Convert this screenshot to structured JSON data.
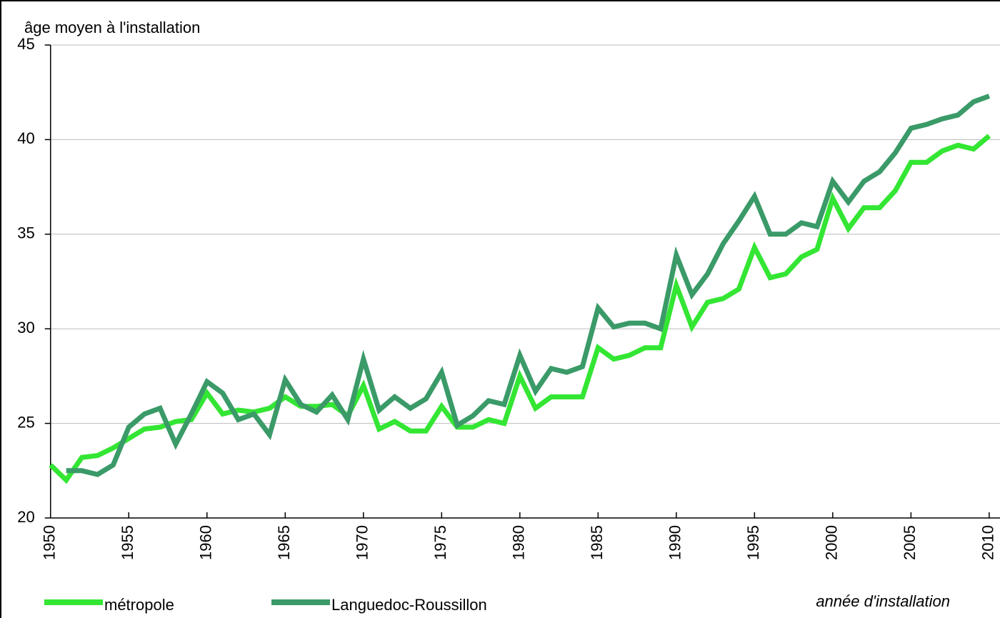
{
  "chart_data": {
    "type": "line",
    "y_label": "âge moyen à l'installation",
    "x_label": "année d'installation",
    "x": [
      1950,
      1951,
      1952,
      1953,
      1954,
      1955,
      1956,
      1957,
      1958,
      1959,
      1960,
      1961,
      1962,
      1963,
      1964,
      1965,
      1966,
      1967,
      1968,
      1969,
      1970,
      1971,
      1972,
      1973,
      1974,
      1975,
      1976,
      1977,
      1978,
      1979,
      1980,
      1981,
      1982,
      1983,
      1984,
      1985,
      1986,
      1987,
      1988,
      1989,
      1990,
      1991,
      1992,
      1993,
      1994,
      1995,
      1996,
      1997,
      1998,
      1999,
      2000,
      2001,
      2002,
      2003,
      2004,
      2005,
      2006,
      2007,
      2008,
      2009,
      2010
    ],
    "series": [
      {
        "name": "métropole",
        "color": "#33e633",
        "values": [
          22.8,
          22.0,
          23.2,
          23.3,
          23.7,
          24.2,
          24.7,
          24.8,
          25.1,
          25.2,
          26.6,
          25.5,
          25.7,
          25.6,
          25.8,
          26.4,
          25.9,
          25.9,
          26.0,
          25.4,
          27.0,
          24.7,
          25.1,
          24.6,
          24.6,
          25.9,
          24.8,
          24.8,
          25.2,
          25.0,
          27.5,
          25.8,
          26.4,
          26.4,
          26.4,
          29.0,
          28.4,
          28.6,
          29.0,
          29.0,
          32.3,
          30.1,
          31.4,
          31.6,
          32.1,
          34.3,
          32.7,
          32.9,
          33.8,
          34.2,
          36.9,
          35.3,
          36.4,
          36.4,
          37.3,
          38.8,
          38.8,
          39.4,
          39.7,
          39.5,
          40.2
        ]
      },
      {
        "name": "Languedoc-Roussillon",
        "color": "#3a9a68",
        "values": [
          null,
          22.5,
          22.5,
          22.3,
          22.8,
          24.8,
          25.5,
          25.8,
          23.9,
          25.5,
          27.2,
          26.6,
          25.2,
          25.5,
          24.4,
          27.3,
          26.0,
          25.6,
          26.5,
          25.2,
          28.4,
          25.7,
          26.4,
          25.8,
          26.3,
          27.7,
          24.9,
          25.4,
          26.2,
          26.0,
          28.6,
          26.7,
          27.9,
          27.7,
          28.0,
          31.1,
          30.1,
          30.3,
          30.3,
          30.0,
          33.9,
          31.8,
          32.9,
          34.5,
          35.7,
          37.0,
          35.0,
          35.0,
          35.6,
          35.4,
          37.8,
          36.7,
          37.8,
          38.3,
          39.3,
          40.6,
          40.8,
          41.1,
          41.3,
          42.0,
          42.3
        ]
      }
    ],
    "xlim": [
      1949.6,
      2010.6
    ],
    "xticks": [
      1950,
      1955,
      1960,
      1965,
      1970,
      1975,
      1980,
      1985,
      1990,
      1995,
      2000,
      2005,
      2010
    ],
    "ylim": [
      20,
      45
    ],
    "yticks": [
      20,
      25,
      30,
      35,
      40,
      45
    ],
    "grid": true
  }
}
